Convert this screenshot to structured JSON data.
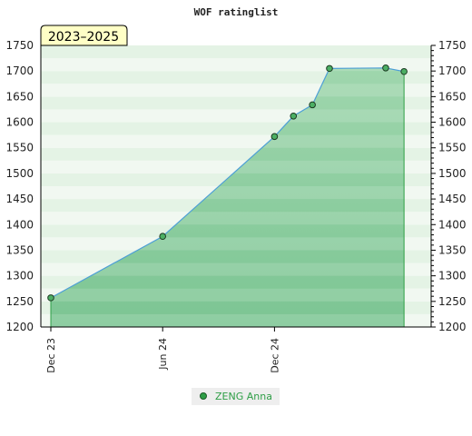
{
  "chart_data": {
    "type": "area",
    "title": "WOF ratinglist",
    "period_badge": "2023–2025",
    "ylim": [
      1200,
      1750
    ],
    "yticks": [
      1200,
      1250,
      1300,
      1350,
      1400,
      1450,
      1500,
      1550,
      1600,
      1650,
      1700,
      1750
    ],
    "y_axis_both_sides": true,
    "xlim": [
      "2023-12-01",
      "2025-08-01"
    ],
    "xticks": [
      {
        "date": "2023-12-01",
        "label": "Dec 23"
      },
      {
        "date": "2024-06-01",
        "label": "Jun 24"
      },
      {
        "date": "2024-12-01",
        "label": "Dec 24"
      }
    ],
    "series": [
      {
        "name": "ZENG Anna",
        "color": "#2e9e46",
        "line_color": "#4d9fd6",
        "points": [
          {
            "x": "2023-12-01",
            "y": 1257
          },
          {
            "x": "2024-06-01",
            "y": 1377
          },
          {
            "x": "2024-12-01",
            "y": 1572
          },
          {
            "x": "2025-01-01",
            "y": 1612
          },
          {
            "x": "2025-02-01",
            "y": 1634
          },
          {
            "x": "2025-03-01",
            "y": 1705
          },
          {
            "x": "2025-06-01",
            "y": 1706
          },
          {
            "x": "2025-07-01",
            "y": 1699
          }
        ]
      }
    ],
    "legend": {
      "position": "bottom-center"
    },
    "grid": true
  }
}
